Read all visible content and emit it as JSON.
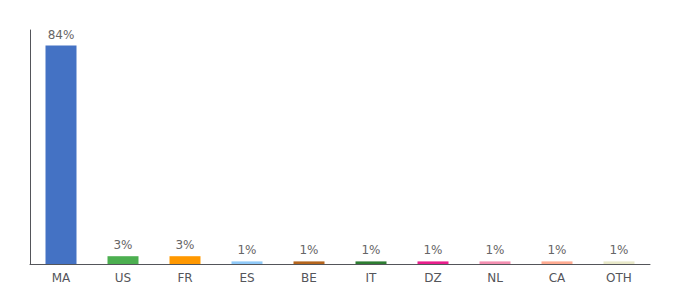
{
  "chart_data": {
    "type": "bar",
    "categories": [
      "MA",
      "US",
      "FR",
      "ES",
      "BE",
      "IT",
      "DZ",
      "NL",
      "CA",
      "OTH"
    ],
    "values": [
      84,
      3,
      3,
      1,
      1,
      1,
      1,
      1,
      1,
      1
    ],
    "value_labels": [
      "84%",
      "3%",
      "3%",
      "1%",
      "1%",
      "1%",
      "1%",
      "1%",
      "1%",
      "1%"
    ],
    "colors": [
      "#4472c4",
      "#4caf50",
      "#ff9800",
      "#90caf9",
      "#b5651d",
      "#2e7d32",
      "#e91e8c",
      "#f48fb1",
      "#ffab91",
      "#e8e8c8"
    ],
    "ylim": [
      0,
      90
    ],
    "data_labels": true,
    "tick_labels": "x",
    "grid": false
  }
}
